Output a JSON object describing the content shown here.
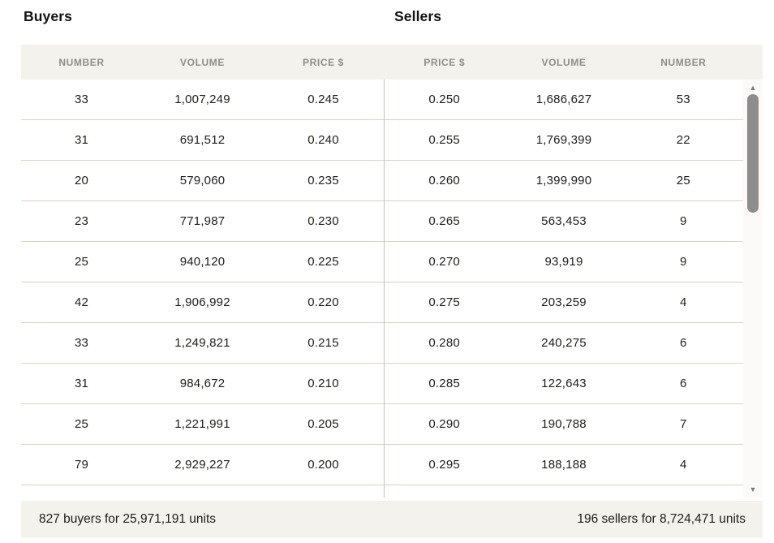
{
  "buyers": {
    "title": "Buyers",
    "columns": [
      "NUMBER",
      "VOLUME",
      "PRICE $"
    ],
    "rows": [
      {
        "number": "33",
        "volume": "1,007,249",
        "price": "0.245"
      },
      {
        "number": "31",
        "volume": "691,512",
        "price": "0.240"
      },
      {
        "number": "20",
        "volume": "579,060",
        "price": "0.235"
      },
      {
        "number": "23",
        "volume": "771,987",
        "price": "0.230"
      },
      {
        "number": "25",
        "volume": "940,120",
        "price": "0.225"
      },
      {
        "number": "42",
        "volume": "1,906,992",
        "price": "0.220"
      },
      {
        "number": "33",
        "volume": "1,249,821",
        "price": "0.215"
      },
      {
        "number": "31",
        "volume": "984,672",
        "price": "0.210"
      },
      {
        "number": "25",
        "volume": "1,221,991",
        "price": "0.205"
      },
      {
        "number": "79",
        "volume": "2,929,227",
        "price": "0.200"
      }
    ],
    "summary": "827 buyers for 25,971,191 units"
  },
  "sellers": {
    "title": "Sellers",
    "columns": [
      "PRICE $",
      "VOLUME",
      "NUMBER"
    ],
    "rows": [
      {
        "price": "0.250",
        "volume": "1,686,627",
        "number": "53"
      },
      {
        "price": "0.255",
        "volume": "1,769,399",
        "number": "22"
      },
      {
        "price": "0.260",
        "volume": "1,399,990",
        "number": "25"
      },
      {
        "price": "0.265",
        "volume": "563,453",
        "number": "9"
      },
      {
        "price": "0.270",
        "volume": "93,919",
        "number": "9"
      },
      {
        "price": "0.275",
        "volume": "203,259",
        "number": "4"
      },
      {
        "price": "0.280",
        "volume": "240,275",
        "number": "6"
      },
      {
        "price": "0.285",
        "volume": "122,643",
        "number": "6"
      },
      {
        "price": "0.290",
        "volume": "190,788",
        "number": "7"
      },
      {
        "price": "0.295",
        "volume": "188,188",
        "number": "4"
      }
    ],
    "summary": "196 sellers for 8,724,471 units"
  },
  "scrollbar": {
    "up_icon": "▲",
    "down_icon": "▼"
  },
  "colors": {
    "band_background": "#f4f2ed",
    "row_separator": "#dad2c7",
    "center_divider": "#c8c1b7",
    "header_text": "#8e8d89",
    "body_text": "#1d1d1b",
    "scrollbar_thumb": "#8d8d8d"
  }
}
